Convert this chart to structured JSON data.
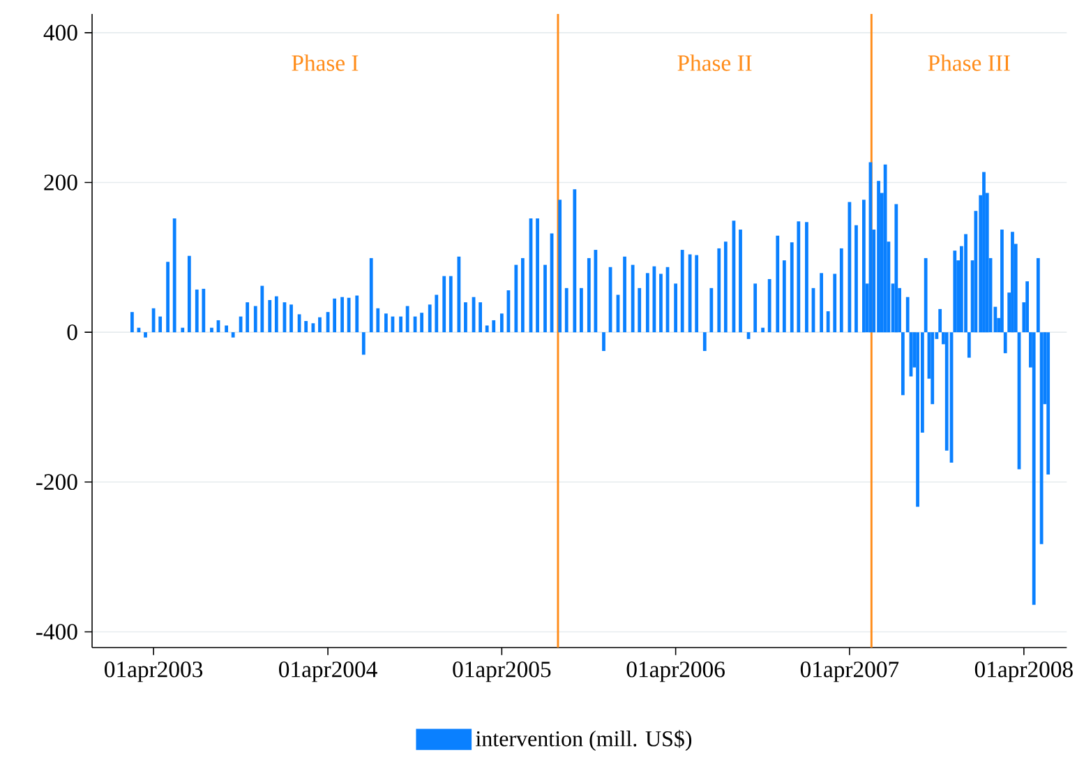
{
  "chart_data": {
    "type": "bar",
    "x": [
      "2003-02-15",
      "2003-03-01",
      "2003-03-15",
      "2003-04-01",
      "2003-04-15",
      "2003-05-01",
      "2003-05-15",
      "2003-06-01",
      "2003-06-15",
      "2003-07-01",
      "2003-07-15",
      "2003-08-01",
      "2003-08-15",
      "2003-09-01",
      "2003-09-15",
      "2003-10-01",
      "2003-10-15",
      "2003-11-01",
      "2003-11-15",
      "2003-12-01",
      "2003-12-15",
      "2004-01-01",
      "2004-01-15",
      "2004-02-01",
      "2004-02-15",
      "2004-03-01",
      "2004-03-15",
      "2004-04-01",
      "2004-04-15",
      "2004-05-01",
      "2004-05-15",
      "2004-06-01",
      "2004-06-15",
      "2004-07-01",
      "2004-07-15",
      "2004-08-01",
      "2004-08-15",
      "2004-09-01",
      "2004-09-15",
      "2004-10-01",
      "2004-10-15",
      "2004-11-01",
      "2004-11-15",
      "2004-12-01",
      "2004-12-15",
      "2005-01-01",
      "2005-01-15",
      "2005-02-01",
      "2005-02-15",
      "2005-03-01",
      "2005-03-15",
      "2005-04-01",
      "2005-04-15",
      "2005-05-01",
      "2005-05-15",
      "2005-06-01",
      "2005-06-15",
      "2005-07-01",
      "2005-07-15",
      "2005-08-01",
      "2005-08-15",
      "2005-09-01",
      "2005-09-15",
      "2005-10-01",
      "2005-10-15",
      "2005-11-01",
      "2005-11-15",
      "2005-12-01",
      "2005-12-15",
      "2006-01-01",
      "2006-01-15",
      "2006-02-01",
      "2006-02-15",
      "2006-03-01",
      "2006-03-15",
      "2006-04-01",
      "2006-04-15",
      "2006-05-01",
      "2006-05-15",
      "2006-06-01",
      "2006-06-15",
      "2006-07-01",
      "2006-07-15",
      "2006-08-01",
      "2006-08-15",
      "2006-09-01",
      "2006-09-15",
      "2006-10-01",
      "2006-10-15",
      "2006-11-01",
      "2006-11-15",
      "2006-12-01",
      "2006-12-15",
      "2007-01-01",
      "2007-01-15",
      "2007-02-01",
      "2007-02-15",
      "2007-03-01",
      "2007-03-15",
      "2007-04-01",
      "2007-04-15",
      "2007-05-01",
      "2007-05-08",
      "2007-05-15",
      "2007-05-22",
      "2007-06-01",
      "2007-06-08",
      "2007-06-15",
      "2007-06-22",
      "2007-07-01",
      "2007-07-08",
      "2007-07-15",
      "2007-07-22",
      "2007-08-01",
      "2007-08-08",
      "2007-08-15",
      "2007-08-22",
      "2007-09-01",
      "2007-09-08",
      "2007-09-15",
      "2007-09-22",
      "2007-10-01",
      "2007-10-08",
      "2007-10-15",
      "2007-10-22",
      "2007-11-01",
      "2007-11-08",
      "2007-11-15",
      "2007-11-22",
      "2007-12-01",
      "2007-12-08",
      "2007-12-15",
      "2007-12-22",
      "2008-01-01",
      "2008-01-08",
      "2008-01-15",
      "2008-01-22",
      "2008-02-01",
      "2008-02-08",
      "2008-02-15",
      "2008-02-22",
      "2008-03-01",
      "2008-03-08",
      "2008-03-15",
      "2008-03-22",
      "2008-04-01",
      "2008-04-08",
      "2008-04-15",
      "2008-04-22",
      "2008-05-01",
      "2008-05-08",
      "2008-05-15",
      "2008-05-22"
    ],
    "series": [
      {
        "name": "intervention (mill. US$)",
        "color": "#0a80ff",
        "values": [
          27,
          6,
          -7,
          32,
          21,
          94,
          152,
          6,
          102,
          57,
          58,
          6,
          16,
          9,
          -7,
          21,
          40,
          35,
          62,
          43,
          48,
          40,
          37,
          24,
          15,
          12,
          20,
          27,
          45,
          47,
          46,
          49,
          -30,
          99,
          32,
          25,
          21,
          21,
          35,
          21,
          26,
          37,
          50,
          75,
          75,
          101,
          40,
          47,
          40,
          9,
          16,
          25,
          56,
          90,
          99,
          152,
          152,
          90,
          132,
          177,
          59,
          191,
          59,
          99,
          110,
          -25,
          87,
          50,
          101,
          90,
          59,
          79,
          88,
          78,
          87,
          65,
          110,
          104,
          103,
          -25,
          59,
          112,
          121,
          149,
          137,
          -9,
          65,
          6,
          71,
          129,
          96,
          120,
          148,
          147,
          59,
          79,
          28,
          78,
          112,
          174,
          143,
          177,
          65,
          227,
          137,
          202,
          186,
          224,
          121,
          65,
          171,
          59,
          -84,
          47,
          -59,
          -47,
          -233,
          -134,
          99,
          -62,
          -96,
          -9,
          31,
          -16,
          -158,
          -174,
          109,
          96,
          115,
          131,
          -34,
          96,
          162,
          183,
          214,
          186,
          99,
          34,
          19,
          137,
          -28,
          53,
          134,
          118,
          -183,
          40,
          68,
          -47,
          -364,
          99,
          -283,
          -96,
          -190
        ]
      }
    ],
    "xlim": [
      "2002-11-23",
      "2008-06-30"
    ],
    "ylim": [
      -421,
      425
    ],
    "xticks": [
      {
        "value": "2003-04-01",
        "label": "01apr2003"
      },
      {
        "value": "2004-04-01",
        "label": "01apr2004"
      },
      {
        "value": "2005-04-01",
        "label": "01apr2005"
      },
      {
        "value": "2006-04-01",
        "label": "01apr2006"
      },
      {
        "value": "2007-04-01",
        "label": "01apr2007"
      },
      {
        "value": "2008-04-01",
        "label": "01apr2008"
      }
    ],
    "yticks": [
      -400,
      -200,
      0,
      200,
      400
    ],
    "grid": "y",
    "legend": "bottom",
    "ref_lines": [
      {
        "axis": "x",
        "value": "2005-07-28",
        "color": "#ff8c1a"
      },
      {
        "axis": "x",
        "value": "2007-05-17",
        "color": "#ff8c1a"
      }
    ],
    "annotations": [
      "Phase I",
      "Phase II",
      "Phase III"
    ]
  }
}
